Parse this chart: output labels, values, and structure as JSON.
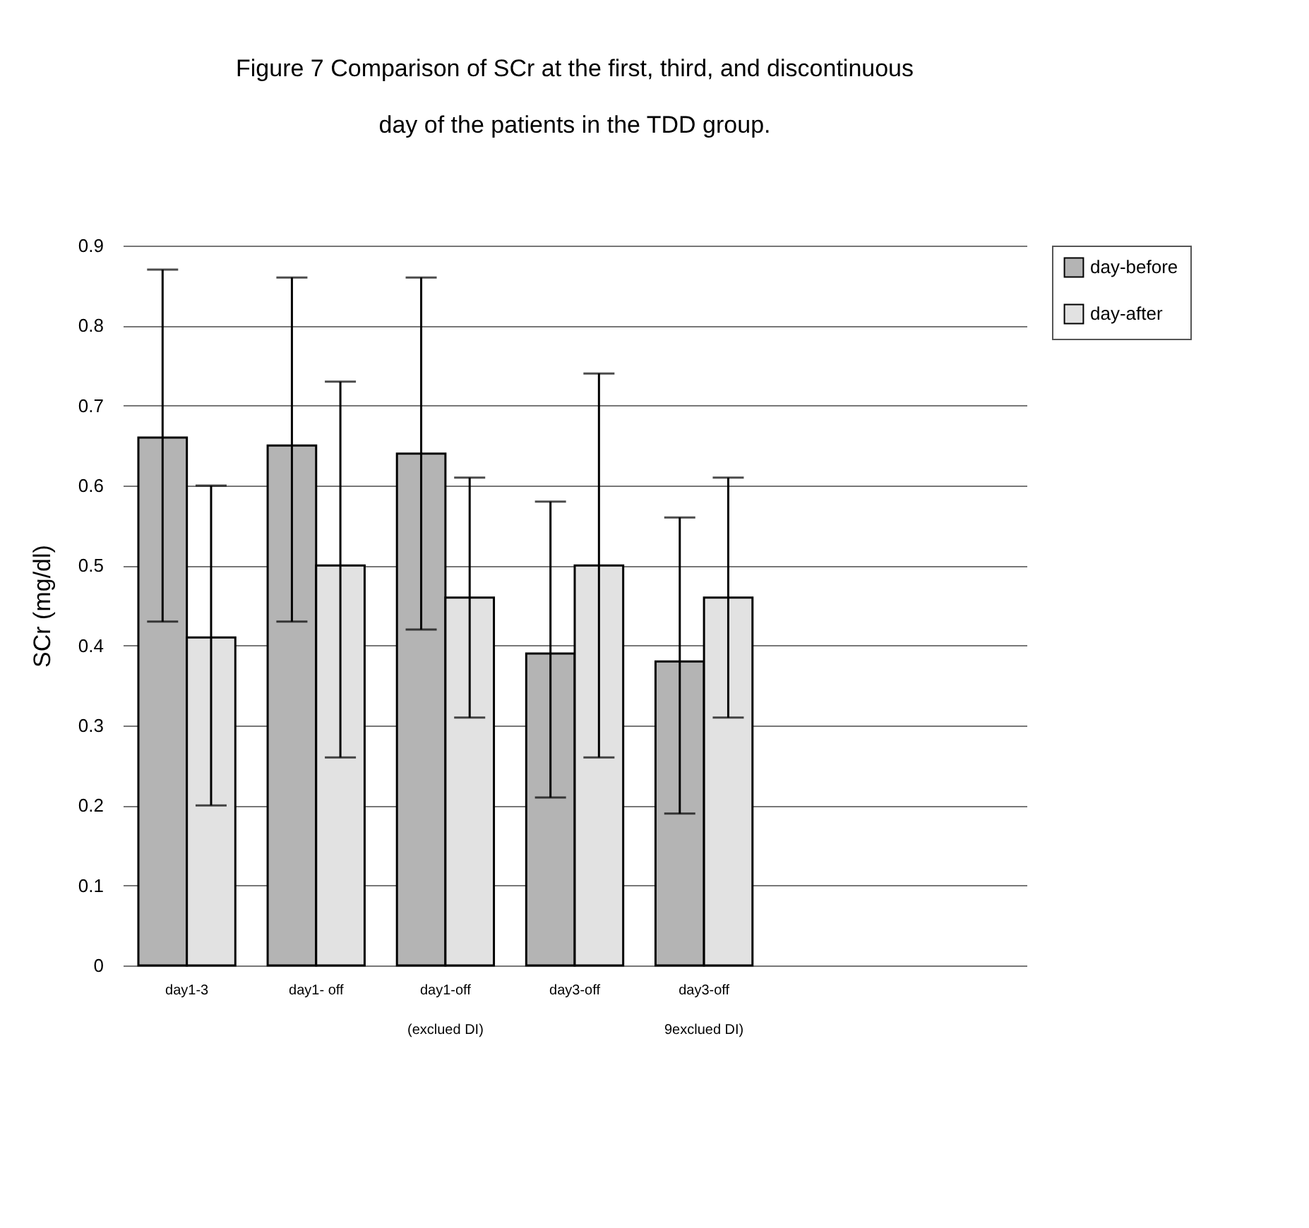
{
  "chart_data": {
    "type": "bar",
    "title": "Figure 7 Comparison of SCr at the first, third, and discontinuous\nday of the patients in  the TDD group.",
    "ylabel": "SCr (mg/dl)",
    "categories": [
      "day1-3",
      "day1- off",
      "day1-off\n(exclued DI)",
      "day3-off",
      "day3-off\n9exclued DI)",
      null,
      null
    ],
    "series": [
      {
        "name": "day-before",
        "color": "#b4b4b4",
        "values": [
          0.66,
          0.65,
          0.64,
          0.39,
          0.38,
          null,
          null
        ],
        "errors": [
          [
            0.43,
            0.87
          ],
          [
            0.43,
            0.86
          ],
          [
            0.42,
            0.86
          ],
          [
            0.21,
            0.58
          ],
          [
            0.19,
            0.56
          ],
          null,
          null
        ]
      },
      {
        "name": "day-after",
        "color": "#e2e2e2",
        "values": [
          0.41,
          0.5,
          0.46,
          0.5,
          0.46,
          null,
          null
        ],
        "errors": [
          [
            0.2,
            0.6
          ],
          [
            0.26,
            0.73
          ],
          [
            0.31,
            0.61
          ],
          [
            0.26,
            0.74
          ],
          [
            0.31,
            0.61
          ],
          null,
          null
        ]
      }
    ],
    "ylim": [
      0,
      0.9
    ],
    "yticks": [
      0,
      0.1,
      0.2,
      0.3,
      0.4,
      0.5,
      0.6,
      0.7,
      0.8,
      0.9
    ],
    "grid": "y",
    "legend": "right"
  }
}
